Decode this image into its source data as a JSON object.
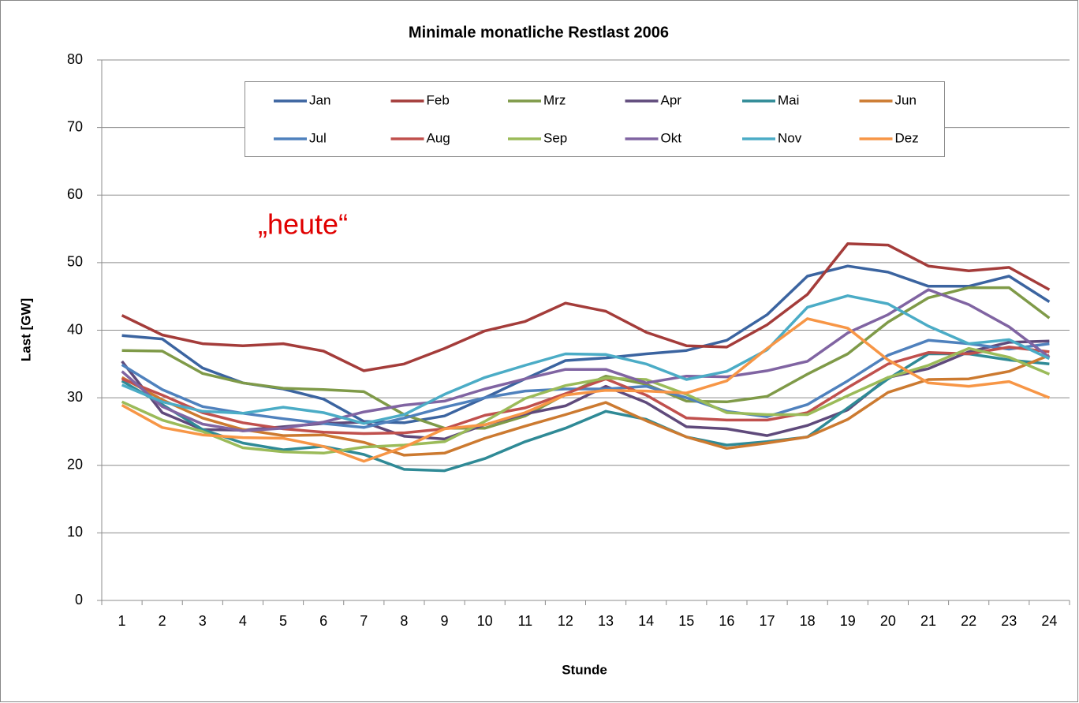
{
  "chart_data": {
    "type": "line",
    "title": "Minimale monatliche Restlast 2006",
    "xlabel": "Stunde",
    "ylabel": "Last [GW]",
    "annotation": "„heute“",
    "categories": [
      "1",
      "2",
      "3",
      "4",
      "5",
      "6",
      "7",
      "8",
      "9",
      "10",
      "11",
      "12",
      "13",
      "14",
      "15",
      "16",
      "17",
      "18",
      "19",
      "20",
      "21",
      "22",
      "23",
      "24"
    ],
    "ylim": [
      0,
      80
    ],
    "yticks": [
      0,
      10,
      20,
      30,
      40,
      50,
      60,
      70,
      80
    ],
    "grid": true,
    "series": [
      {
        "name": "Jan",
        "color": "#3b64a0",
        "values": [
          39.2,
          38.7,
          34.4,
          32.2,
          31.3,
          29.8,
          26.5,
          26.3,
          27.3,
          30,
          32.8,
          35.5,
          35.9,
          36.5,
          37,
          38.5,
          42.3,
          48,
          49.5,
          48.6,
          46.5,
          46.5,
          48,
          44.2
        ]
      },
      {
        "name": "Feb",
        "color": "#a43c3a",
        "values": [
          42.2,
          39.3,
          38,
          37.7,
          38,
          36.9,
          34,
          35,
          37.3,
          39.9,
          41.3,
          44,
          42.8,
          39.7,
          37.7,
          37.5,
          40.8,
          45.3,
          52.8,
          52.6,
          49.5,
          48.8,
          49.3,
          46
        ]
      },
      {
        "name": "Mrz",
        "color": "#7f9a48",
        "values": [
          37,
          36.9,
          33.6,
          32.2,
          31.4,
          31.2,
          30.9,
          27.5,
          25.5,
          25.5,
          27.3,
          30.5,
          33.2,
          32,
          29.5,
          29.4,
          30.2,
          33.5,
          36.5,
          41.2,
          44.8,
          46.3,
          46.3,
          41.8
        ]
      },
      {
        "name": "Apr",
        "color": "#5f4a7b",
        "values": [
          35.4,
          27.8,
          25.3,
          25.2,
          25.7,
          26.2,
          26.4,
          24.3,
          23.9,
          26,
          27.6,
          28.8,
          31.7,
          29.3,
          25.7,
          25.4,
          24.4,
          25.9,
          28.2,
          33,
          34.3,
          36.8,
          38.2,
          38.4
        ]
      },
      {
        "name": "Mai",
        "color": "#2f8a96",
        "values": [
          32.5,
          29,
          25.3,
          23.3,
          22.3,
          22.8,
          21.6,
          19.4,
          19.2,
          21,
          23.5,
          25.5,
          28,
          26.8,
          24.2,
          23,
          23.5,
          24.2,
          28.5,
          32.8,
          36.5,
          36.5,
          35.6,
          35
        ]
      },
      {
        "name": "Jun",
        "color": "#cc7a30",
        "values": [
          33,
          29.7,
          27,
          25.3,
          24.4,
          24.5,
          23.4,
          21.5,
          21.8,
          24,
          25.8,
          27.5,
          29.3,
          26.6,
          24.2,
          22.5,
          23.3,
          24.2,
          26.8,
          30.8,
          32.7,
          32.8,
          33.9,
          36.3
        ]
      },
      {
        "name": "Jul",
        "color": "#4f81bd",
        "values": [
          34.9,
          31.2,
          28.7,
          27.7,
          26.9,
          26.2,
          25.6,
          27,
          28.6,
          30,
          31,
          31.3,
          31.3,
          31.7,
          30,
          28,
          27.2,
          29,
          32.5,
          36.3,
          38.5,
          38,
          37.2,
          38
        ]
      },
      {
        "name": "Aug",
        "color": "#c0504d",
        "values": [
          32.8,
          30.4,
          27.8,
          26.3,
          25.4,
          24.9,
          24.7,
          24.8,
          25.4,
          27.4,
          28.5,
          30.6,
          32.8,
          30.4,
          27,
          26.7,
          26.7,
          27.8,
          31.5,
          35,
          36.7,
          36.5,
          37.5,
          36.8
        ]
      },
      {
        "name": "Sep",
        "color": "#9bbb59",
        "values": [
          29.4,
          26.7,
          25,
          22.6,
          22,
          21.8,
          22.7,
          23,
          23.5,
          26.5,
          29.9,
          31.8,
          32.9,
          32.7,
          30.5,
          27.8,
          27.5,
          27.5,
          30.3,
          33,
          34.8,
          37.3,
          36,
          33.5
        ]
      },
      {
        "name": "Okt",
        "color": "#8064a2",
        "values": [
          33.9,
          28.7,
          26.1,
          25.1,
          25.5,
          26.4,
          27.9,
          28.9,
          29.5,
          31.3,
          32.8,
          34.2,
          34.2,
          32.2,
          33.2,
          33.1,
          34,
          35.4,
          39.6,
          42.3,
          46,
          43.8,
          40.5,
          36
        ]
      },
      {
        "name": "Nov",
        "color": "#4bacc6",
        "values": [
          31.9,
          29.4,
          28,
          27.7,
          28.6,
          27.8,
          26.2,
          27.5,
          30.5,
          33,
          34.8,
          36.5,
          36.4,
          35,
          32.7,
          33.9,
          37.1,
          43.4,
          45.1,
          43.9,
          40.6,
          38,
          38.6,
          35.8
        ]
      },
      {
        "name": "Dez",
        "color": "#f79646",
        "values": [
          28.9,
          25.6,
          24.5,
          24.1,
          24,
          22.8,
          20.6,
          22.7,
          25.4,
          26,
          27.8,
          30.4,
          31.1,
          31,
          30.7,
          32.5,
          37.3,
          41.7,
          40.3,
          35.6,
          32.2,
          31.7,
          32.4,
          30
        ]
      }
    ]
  }
}
